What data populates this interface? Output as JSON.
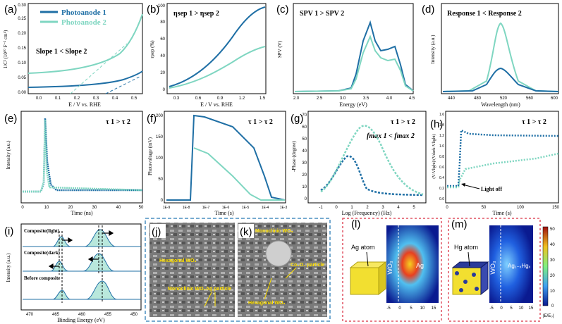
{
  "colors": {
    "dark": "#1f6fa5",
    "light": "#7fd6c1",
    "lightFill": "#b9e8dc",
    "darkFill": "#2e7fa6",
    "dashBorder": "#4a8fc0",
    "redBorder": "#e05060",
    "sem": "#8a8a8a"
  },
  "panels": {
    "a": {
      "label": "(a)",
      "legend1": "Photoanode 1",
      "legend2": "Photoanode 2",
      "annotation": "Slope 1 < Slope 2",
      "ylabel": "1/C² (10¹⁰ F⁻² cm⁴)",
      "xlabel": "E / V vs. RHE",
      "yticks": [
        "0.00",
        "0.05",
        "0.10",
        "0.15",
        "0.20",
        "0.25",
        "0.30"
      ],
      "xticks": [
        "0.0",
        "0.1",
        "0.2",
        "0.3",
        "0.4",
        "0.5"
      ]
    },
    "b": {
      "label": "(b)",
      "annotation": "ηsep 1 > ηsep 2",
      "ylabel": "ηsep (%)",
      "xlabel": "E / V vs. RHE",
      "yticks": [
        "0",
        "20",
        "40",
        "60",
        "80",
        "100"
      ],
      "xticks": [
        "0.3",
        "0.6",
        "0.9",
        "1.2",
        "1.5"
      ]
    },
    "c": {
      "label": "(c)",
      "annotation": "SPV 1 > SPV 2",
      "ylabel": "SPV (V)",
      "xlabel": "Energy (eV)",
      "xticks": [
        "2.0",
        "2.5",
        "3.0",
        "3.5",
        "4.0",
        "4.5"
      ]
    },
    "d": {
      "label": "(d)",
      "annotation": "Response 1 < Response 2",
      "ylabel": "Intensity (a.u.)",
      "xlabel": "Wavelength (nm)",
      "xticks": [
        "440",
        "480",
        "520",
        "560",
        "600"
      ]
    },
    "e": {
      "label": "(e)",
      "annotation": "τ 1 > τ 2",
      "ylabel": "Intensity (a.u.)",
      "xlabel": "Time (ns)",
      "xticks": [
        "0",
        "10",
        "20",
        "30",
        "40",
        "50"
      ]
    },
    "f": {
      "label": "(f)",
      "annotation": "τ 1 > τ 2",
      "ylabel": "Photovoltage (mV)",
      "xlabel": "Time (s)",
      "yticks": [
        "0",
        "50",
        "100",
        "150",
        "200"
      ],
      "xticks": [
        "1E-9",
        "1E-8",
        "1E-7",
        "1E-6",
        "1E-5",
        "1E-4",
        "1E-3"
      ]
    },
    "g": {
      "label": "(g)",
      "annotation1": "τ 1 > τ 2",
      "annotation2": "fmax 1 < fmax 2",
      "ylabel": "-Phase (degree)",
      "xlabel": "Log (Frequency) (Hz)",
      "yticks": [
        "0",
        "10",
        "20",
        "30",
        "40",
        "50",
        "60",
        "70"
      ],
      "xticks": [
        "-1",
        "0",
        "1",
        "2",
        "3",
        "4",
        "5"
      ]
    },
    "h": {
      "label": "(h)",
      "annotation": "τ 1 > τ 2",
      "lightoff": "Light off",
      "ylabel": "(V-Vlight)/(Vdark-Vlight)",
      "xlabel": "Time (s)",
      "yticks": [
        "0.0",
        "0.2",
        "0.4",
        "0.6",
        "0.8",
        "1.0",
        "1.2",
        "1.4",
        "1.6"
      ],
      "xticks": [
        "0",
        "50",
        "100",
        "150"
      ]
    },
    "i": {
      "label": "(i)",
      "row1": "Composite(light)",
      "row2": "Composite(dark)",
      "row3": "Before composite",
      "ylabel": "Intensity (a.u.)",
      "xlabel": "Binding Energy (eV)",
      "xticks": [
        "470",
        "465",
        "460",
        "455",
        "450"
      ]
    },
    "j": {
      "label": "(j)",
      "ann1": "Hexagonal WO₃",
      "ann2": "Monoclinic WO₃",
      "ann3": "Ag particle"
    },
    "k": {
      "label": "(k)",
      "ann1": "Monoclinic WO₃",
      "ann2": "Co₃O₄ particle",
      "ann3": "Hexagonal WO₃"
    },
    "l": {
      "label": "(l)",
      "atom": "Ag atom",
      "wo3": "WO₃",
      "inner": "Ag",
      "xticks": [
        "-5",
        "0",
        "5",
        "10",
        "15"
      ]
    },
    "m": {
      "label": "(m)",
      "atom": "Hg atom",
      "wo3": "WO₃",
      "inner": "Ag₁₋ₓHgₓ",
      "xticks": [
        "-5",
        "0",
        "5",
        "10",
        "15"
      ],
      "cbar": [
        "50",
        "40",
        "30",
        "20",
        "10",
        "0"
      ],
      "cbarLabel": "|E/E₀|"
    }
  }
}
